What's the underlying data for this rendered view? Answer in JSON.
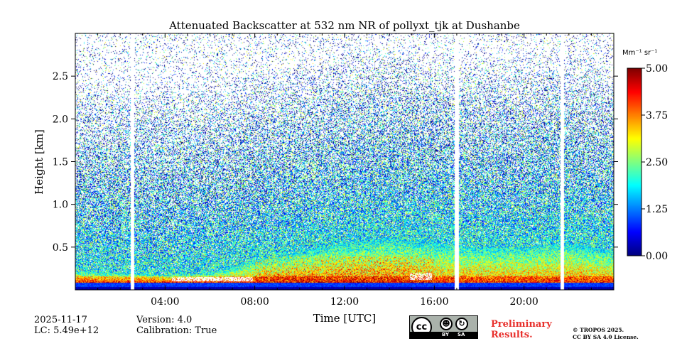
{
  "chart_data": {
    "type": "heatmap",
    "title": "Attenuated Backscatter at 532 nm NR of pollyxt_tjk at Dushanbe",
    "xlabel": "Time [UTC]",
    "ylabel": "Height [km]",
    "xlim_hours": [
      0,
      24
    ],
    "ylim_km": [
      0,
      3.0
    ],
    "x_ticks": [
      {
        "hour": 4,
        "label": "04:00"
      },
      {
        "hour": 8,
        "label": "08:00"
      },
      {
        "hour": 12,
        "label": "12:00"
      },
      {
        "hour": 16,
        "label": "16:00"
      },
      {
        "hour": 20,
        "label": "20:00"
      }
    ],
    "y_ticks": [
      {
        "value": 0.5,
        "label": "0.5"
      },
      {
        "value": 1.0,
        "label": "1.0"
      },
      {
        "value": 1.5,
        "label": "1.5"
      },
      {
        "value": 2.0,
        "label": "2.0"
      },
      {
        "value": 2.5,
        "label": "2.5"
      }
    ],
    "colorbar": {
      "unit_label": "Mm⁻¹ sr⁻¹",
      "range": [
        0.0,
        5.0
      ],
      "ticks": [
        {
          "value": 0.0,
          "label": "0.00"
        },
        {
          "value": 1.25,
          "label": "1.25"
        },
        {
          "value": 2.5,
          "label": "2.50"
        },
        {
          "value": 3.75,
          "label": "3.75"
        },
        {
          "value": 5.0,
          "label": "5.00"
        }
      ],
      "colormap": "jet"
    },
    "data_gaps_hours": [
      2.55,
      17.0,
      21.7
    ],
    "aerosol_layer_top_km": [
      [
        0,
        0.22
      ],
      [
        2,
        0.2
      ],
      [
        4,
        0.18
      ],
      [
        6,
        0.2
      ],
      [
        8,
        0.35
      ],
      [
        10,
        0.45
      ],
      [
        12,
        0.55
      ],
      [
        14,
        0.6
      ],
      [
        16,
        0.55
      ],
      [
        18,
        0.5
      ],
      [
        20,
        0.5
      ],
      [
        22,
        0.55
      ],
      [
        24,
        0.45
      ]
    ]
  },
  "footer": {
    "date": "2025-11-17",
    "lc": "LC: 5.49e+12",
    "version": "Version: 4.0",
    "calibration": "Calibration: True",
    "preliminary_line1": "Preliminary",
    "preliminary_line2": "Results.",
    "copyright_line1": "© TROPOS 2025.",
    "copyright_line2": "CC BY SA 4.0 License.",
    "license_badge_by": "BY",
    "license_badge_sa": "SA",
    "license_badge_cc": "cc"
  }
}
